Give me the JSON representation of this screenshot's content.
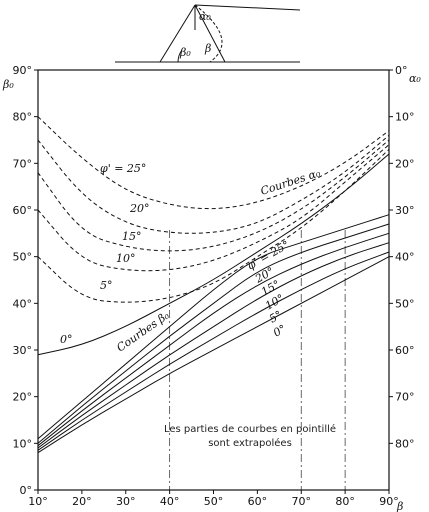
{
  "chart_data": {
    "type": "line",
    "title": "",
    "x_axis": {
      "label": "β",
      "range": [
        10,
        90
      ],
      "ticks": [
        "10°",
        "20°",
        "30°",
        "40°",
        "50°",
        "60°",
        "70°",
        "80°",
        "90°"
      ]
    },
    "y_axis_left": {
      "label": "β₀",
      "range": [
        0,
        90
      ],
      "ticks": [
        "0°",
        "10°",
        "20°",
        "30°",
        "40°",
        "50°",
        "60°",
        "70°",
        "80°",
        "90°"
      ]
    },
    "y_axis_right": {
      "label": "α₀",
      "range": [
        0,
        90
      ],
      "inverted": true,
      "ticks": [
        "0°",
        "10°",
        "20°",
        "30°",
        "40°",
        "50°",
        "60°",
        "70°",
        "80°"
      ]
    },
    "family_labels": {
      "alpha": "Courbes α₀",
      "beta": "Courbes β₀"
    },
    "phi_labels_alpha": [
      "φ' = 25°",
      "20°",
      "15°",
      "10°",
      "5°",
      "0°"
    ],
    "phi_labels_beta": [
      "φ' = 25°",
      "20°",
      "15°",
      "10°",
      "5°",
      "0°"
    ],
    "note_lines": [
      "Les parties de courbes en pointillé",
      "sont extrapolées"
    ],
    "series": [
      {
        "family": "alpha",
        "phi": 25,
        "x": [
          10,
          20,
          30,
          40,
          50,
          60,
          70,
          80,
          90
        ],
        "y": [
          80,
          71,
          64,
          61,
          60,
          61.5,
          65,
          70,
          77
        ]
      },
      {
        "family": "alpha",
        "phi": 20,
        "x": [
          10,
          20,
          30,
          40,
          50,
          60,
          70,
          80,
          90
        ],
        "y": [
          75,
          63,
          57,
          55,
          55,
          57,
          62,
          68,
          76
        ]
      },
      {
        "family": "alpha",
        "phi": 15,
        "x": [
          10,
          20,
          30,
          40,
          50,
          60,
          70,
          80,
          90
        ],
        "y": [
          68,
          55,
          52,
          51,
          52,
          55,
          60,
          67,
          75
        ]
      },
      {
        "family": "alpha",
        "phi": 10,
        "x": [
          10,
          20,
          30,
          40,
          50,
          60,
          70,
          80,
          90
        ],
        "y": [
          60,
          49,
          47,
          47,
          49,
          53,
          58,
          66,
          74
        ]
      },
      {
        "family": "alpha",
        "phi": 5,
        "x": [
          10,
          20,
          30,
          40,
          50,
          60,
          70,
          80,
          90
        ],
        "y": [
          50,
          41,
          40,
          41,
          44,
          50,
          56,
          64,
          73
        ]
      },
      {
        "family": "alpha",
        "phi": 0,
        "x": [
          10,
          20,
          30,
          40,
          50,
          60,
          70,
          80,
          90
        ],
        "y": [
          29,
          31,
          35,
          40,
          45,
          51,
          57,
          64,
          72
        ]
      },
      {
        "family": "beta",
        "phi": 25,
        "x": [
          10,
          20,
          30,
          40,
          50,
          60,
          70,
          80,
          90
        ],
        "y": [
          11,
          19,
          27,
          35,
          43,
          50,
          53,
          56,
          59
        ]
      },
      {
        "family": "beta",
        "phi": 20,
        "x": [
          10,
          20,
          30,
          40,
          50,
          60,
          70,
          80,
          90
        ],
        "y": [
          10,
          18,
          25.5,
          33,
          40,
          47,
          51,
          54,
          57
        ]
      },
      {
        "family": "beta",
        "phi": 15,
        "x": [
          10,
          20,
          30,
          40,
          50,
          60,
          70,
          80,
          90
        ],
        "y": [
          9.5,
          17,
          24,
          31,
          38,
          44,
          48.5,
          52,
          55
        ]
      },
      {
        "family": "beta",
        "phi": 10,
        "x": [
          10,
          20,
          30,
          40,
          50,
          60,
          70,
          80,
          90
        ],
        "y": [
          9,
          16,
          22.5,
          29,
          35,
          41,
          46,
          50,
          53
        ]
      },
      {
        "family": "beta",
        "phi": 5,
        "x": [
          10,
          20,
          30,
          40,
          50,
          60,
          70,
          80,
          90
        ],
        "y": [
          8.5,
          15,
          21,
          27,
          32.5,
          38,
          43,
          47.5,
          51
        ]
      },
      {
        "family": "beta",
        "phi": 0,
        "x": [
          10,
          20,
          30,
          40,
          50,
          60,
          70,
          80,
          90
        ],
        "y": [
          8,
          14,
          19.5,
          25,
          30,
          35,
          40,
          45,
          50
        ]
      }
    ]
  }
}
